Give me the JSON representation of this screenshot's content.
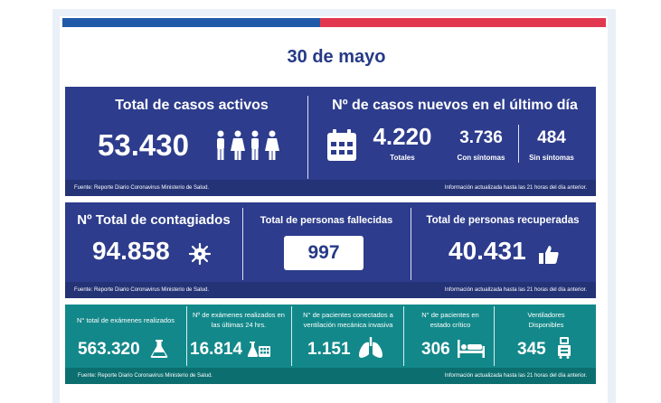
{
  "date": "30 de mayo",
  "colors": {
    "navy": "#2d3c8c",
    "teal": "#13888a",
    "blue": "#1f5ba8",
    "red": "#e2384f"
  },
  "active": {
    "title": "Total de casos activos",
    "value": "53.430",
    "icon": "people-icon"
  },
  "new_cases": {
    "title": "Nº de casos nuevos en el último día",
    "total_value": "4.220",
    "total_label": "Totales",
    "symptoms_value": "3.736",
    "symptoms_label": "Con síntomas",
    "no_symptoms_value": "484",
    "no_symptoms_label": "Sin síntomas",
    "icon": "calendar-icon"
  },
  "contagiados": {
    "title": "Nº Total de contagiados",
    "value": "94.858",
    "icon": "virus-icon"
  },
  "fallecidas": {
    "title": "Total de personas fallecidas",
    "value": "997"
  },
  "recuperadas": {
    "title": "Total de personas recuperadas",
    "value": "40.431",
    "icon": "thumbs-up-icon"
  },
  "exams": {
    "label": "N° total de exámenes realizados",
    "value": "563.320",
    "icon": "flask-icon"
  },
  "exams24": {
    "label": "Nº de exámenes realizados en las últimas 24 hrs.",
    "value": "16.814",
    "icon": "lab-icon"
  },
  "ventilation": {
    "label": "N° de pacientes conectados a ventilación mecánica invasiva",
    "value": "1.151",
    "icon": "lungs-icon"
  },
  "critical": {
    "label": "N° de pacientes  en estado crítico",
    "value": "306",
    "icon": "hospital-bed-icon"
  },
  "ventilators": {
    "label": "Ventiladores Disponibles",
    "value": "345",
    "icon": "ventilator-icon"
  },
  "footer": {
    "source": "Fuente: Reporte Diario Coronavirus Ministerio de Salud.",
    "updated": "Información actualizada hasta las 21 horas  del día anterior."
  }
}
